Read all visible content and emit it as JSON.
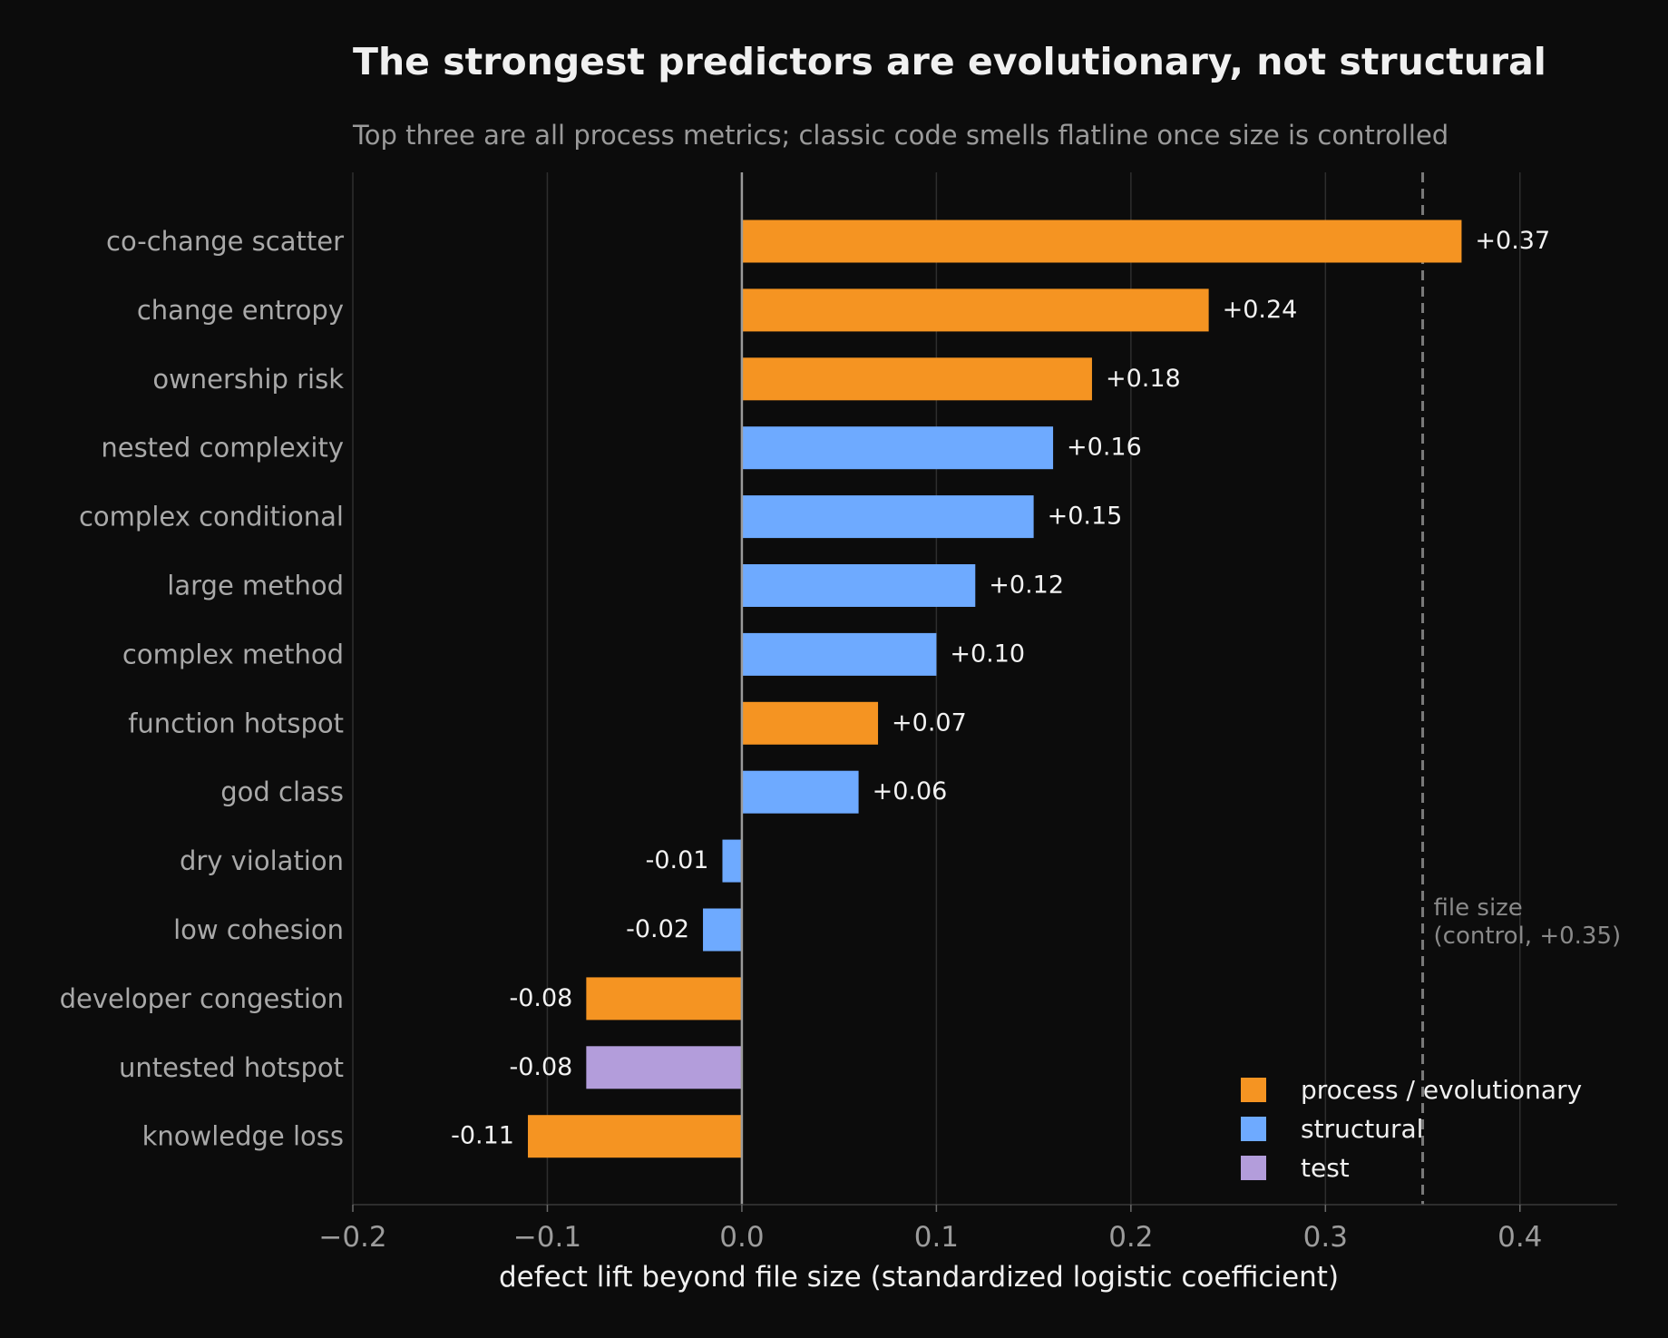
{
  "chart_data": {
    "type": "bar",
    "orientation": "horizontal",
    "title": "The strongest predictors are evolutionary, not structural",
    "subtitle": "Top three are all process metrics; classic code smells flatline once size is controlled",
    "xlabel": "defect lift beyond file size  (standardized logistic coefficient)",
    "ylabel": "",
    "xlim": [
      -0.2,
      0.45
    ],
    "xticks": [
      -0.2,
      -0.1,
      0.0,
      0.1,
      0.2,
      0.3,
      0.4
    ],
    "xtick_labels": [
      "−0.2",
      "−0.1",
      "0.0",
      "0.1",
      "0.2",
      "0.3",
      "0.4"
    ],
    "grid": "vertical",
    "categories": [
      "co-change scatter",
      "change entropy",
      "ownership risk",
      "nested complexity",
      "complex conditional",
      "large method",
      "complex method",
      "function hotspot",
      "god class",
      "dry violation",
      "low cohesion",
      "developer congestion",
      "untested hotspot",
      "knowledge loss"
    ],
    "values": [
      0.37,
      0.24,
      0.18,
      0.16,
      0.15,
      0.12,
      0.1,
      0.07,
      0.06,
      -0.01,
      -0.02,
      -0.08,
      -0.08,
      -0.11
    ],
    "value_labels": [
      "+0.37",
      "+0.24",
      "+0.18",
      "+0.16",
      "+0.15",
      "+0.12",
      "+0.10",
      "+0.07",
      "+0.06",
      "-0.01",
      "-0.02",
      "-0.08",
      "-0.08",
      "-0.11"
    ],
    "groups": [
      "process",
      "process",
      "process",
      "structural",
      "structural",
      "structural",
      "structural",
      "process",
      "structural",
      "structural",
      "structural",
      "process",
      "test",
      "process"
    ],
    "legend": {
      "placement": "lower-right",
      "entries": [
        {
          "key": "process",
          "label": "process / evolutionary",
          "color": "#f59422"
        },
        {
          "key": "structural",
          "label": "structural",
          "color": "#6eaaff"
        },
        {
          "key": "test",
          "label": "test",
          "color": "#b39ddb"
        }
      ]
    },
    "reference_line": {
      "x": 0.35,
      "style": "dashed",
      "label_lines": [
        "file size",
        "(control, +0.35)"
      ]
    }
  },
  "colors": {
    "background": "#0c0c0c",
    "grid": "#2e2e2e",
    "zero_line": "#9a9a9a",
    "reference_line": "#7a7a7a"
  }
}
